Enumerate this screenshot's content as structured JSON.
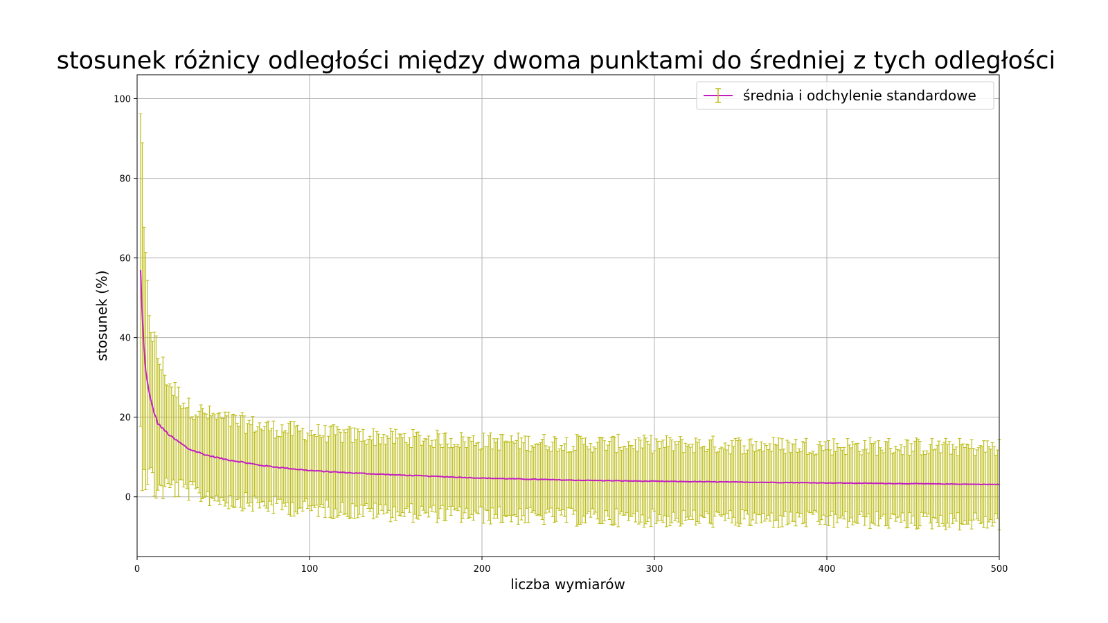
{
  "chart_data": {
    "type": "line",
    "title": "stosunek różnicy odległości między dwoma punktami do średniej z tych odległości",
    "xlabel": "liczba wymiarów",
    "ylabel": "stosunek (%)",
    "xlim": [
      0,
      500
    ],
    "ylim": [
      -15,
      106
    ],
    "xticks": [
      "0",
      "100",
      "200",
      "300",
      "400",
      "500"
    ],
    "yticks": [
      "0",
      "20",
      "40",
      "60",
      "80",
      "100"
    ],
    "grid": true,
    "legend": {
      "placement": "top-right"
    },
    "colors": {
      "mean_line": "#c31cc3",
      "error_bars": "#bcbc16",
      "grid": "#b0b0b0"
    },
    "series": [
      {
        "name": "średnia i odchylenie standardowe",
        "x_start": 2,
        "x_end": 500,
        "x_step": 1,
        "mean_samples": {
          "x": [
            2,
            3,
            4,
            5,
            6,
            7,
            8,
            10,
            12,
            15,
            20,
            25,
            30,
            40,
            50,
            60,
            70,
            80,
            100,
            120,
            150,
            200,
            250,
            300,
            350,
            400,
            450,
            500
          ],
          "y": [
            56.6,
            45,
            37,
            32,
            28.5,
            26,
            24,
            21,
            18.5,
            17,
            15,
            13.5,
            12,
            10.5,
            9.5,
            8.8,
            8,
            7.5,
            6.6,
            6.1,
            5.5,
            4.7,
            4.2,
            3.9,
            3.7,
            3.5,
            3.3,
            3.1
          ]
        },
        "std_samples": {
          "x": [
            2,
            3,
            4,
            5,
            6,
            8,
            10,
            15,
            20,
            30,
            50,
            100,
            200,
            300,
            400,
            500
          ],
          "y": [
            43.5,
            35,
            28,
            25,
            22,
            20,
            18,
            15,
            12.5,
            10.5,
            10,
            9.5,
            9.3,
            9.3,
            9.3,
            9.3
          ]
        }
      }
    ]
  }
}
